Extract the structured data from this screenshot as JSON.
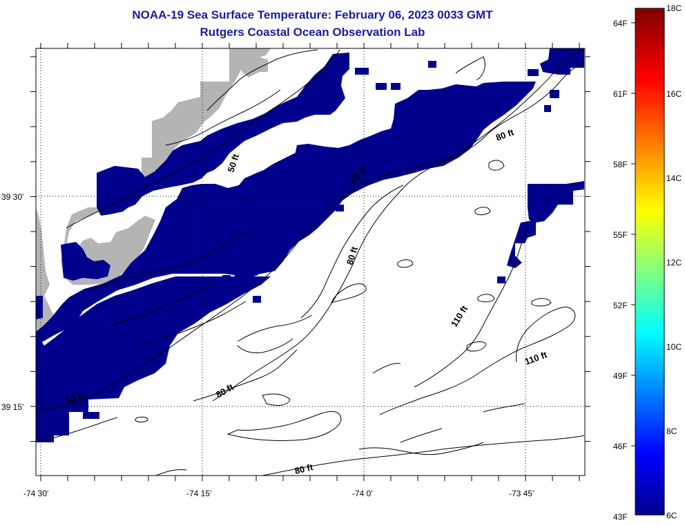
{
  "header": {
    "title": "NOAA-19 Sea Surface Temperature:  February 06, 2023 0033 GMT",
    "subtitle": "Rutgers Coastal Ocean Observation Lab"
  },
  "axes": {
    "lon_labels": [
      "-74 30'",
      "-74 15'",
      "-74 0'",
      "-73 45'"
    ],
    "lat_labels": [
      "39 30'",
      "39 15'"
    ]
  },
  "contour_labels": [
    "50 ft",
    "50 ft",
    "80 ft",
    "80 ft",
    "80 ft",
    "80 ft",
    "80 ft",
    "110 ft",
    "110 ft"
  ],
  "colorbar": {
    "fahrenheit": [
      "64F",
      "61F",
      "58F",
      "55F",
      "52F",
      "49F",
      "46F",
      "43F"
    ],
    "celsius": [
      "18C",
      "16C",
      "14C",
      "12C",
      "10C",
      "8C",
      "6C"
    ]
  },
  "colors": {
    "land": "#b4b4b4",
    "sst_pixel": "#00008c",
    "title": "#1a1aa6"
  }
}
